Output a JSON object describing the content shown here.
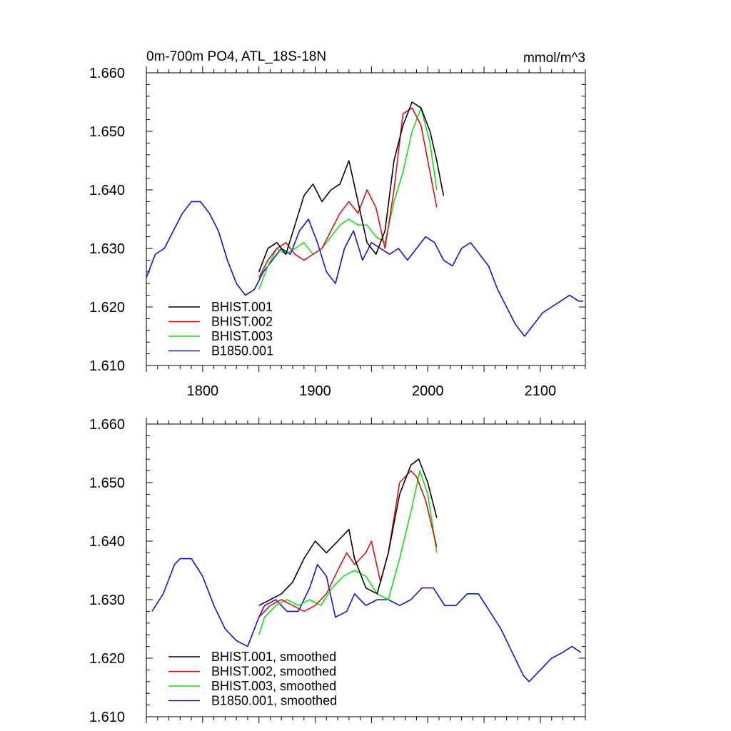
{
  "colors": {
    "BHIST.001": "#000000",
    "BHIST.002": "#e01010",
    "BHIST.003": "#10e010",
    "B1850.001": "#1010e0"
  },
  "chart_data": [
    {
      "type": "line",
      "title": "0m-700m PO4, ATL_18S-18N",
      "units": "mmol/m^3",
      "xlim": [
        1750,
        2140
      ],
      "ylim": [
        1.61,
        1.66
      ],
      "xticks": [
        "1800",
        "1900",
        "2000",
        "2100"
      ],
      "yticks": [
        "1.610",
        "1.620",
        "1.630",
        "1.640",
        "1.650",
        "1.660"
      ],
      "legend_position": "bottom-left",
      "series": [
        {
          "name": "BHIST.001",
          "x": [
            1850,
            1858,
            1866,
            1874,
            1882,
            1890,
            1898,
            1906,
            1914,
            1922,
            1930,
            1938,
            1946,
            1954,
            1962,
            1970,
            1978,
            1986,
            1994,
            2002,
            2008,
            2014
          ],
          "values": [
            1.626,
            1.63,
            1.631,
            1.629,
            1.634,
            1.639,
            1.641,
            1.638,
            1.64,
            1.641,
            1.645,
            1.638,
            1.631,
            1.629,
            1.633,
            1.645,
            1.651,
            1.655,
            1.654,
            1.65,
            1.645,
            1.639
          ]
        },
        {
          "name": "BHIST.002",
          "x": [
            1850,
            1858,
            1866,
            1874,
            1882,
            1890,
            1898,
            1906,
            1914,
            1922,
            1930,
            1938,
            1946,
            1954,
            1962,
            1970,
            1978,
            1986,
            1994,
            2002,
            2008
          ],
          "values": [
            1.625,
            1.628,
            1.63,
            1.631,
            1.629,
            1.628,
            1.629,
            1.63,
            1.633,
            1.636,
            1.638,
            1.636,
            1.64,
            1.637,
            1.63,
            1.64,
            1.653,
            1.654,
            1.651,
            1.643,
            1.637
          ]
        },
        {
          "name": "BHIST.003",
          "x": [
            1850,
            1858,
            1866,
            1874,
            1882,
            1890,
            1898,
            1906,
            1914,
            1922,
            1930,
            1938,
            1946,
            1954,
            1962,
            1970,
            1978,
            1986,
            1994,
            2002,
            2008
          ],
          "values": [
            1.623,
            1.627,
            1.63,
            1.629,
            1.63,
            1.631,
            1.629,
            1.63,
            1.632,
            1.634,
            1.635,
            1.634,
            1.634,
            1.632,
            1.631,
            1.638,
            1.643,
            1.65,
            1.654,
            1.648,
            1.64
          ]
        },
        {
          "name": "B1850.001",
          "x": [
            1750,
            1758,
            1766,
            1774,
            1782,
            1790,
            1798,
            1806,
            1814,
            1822,
            1830,
            1838,
            1846,
            1854,
            1862,
            1870,
            1878,
            1886,
            1894,
            1902,
            1910,
            1918,
            1926,
            1934,
            1942,
            1950,
            1958,
            1966,
            1974,
            1982,
            1990,
            1998,
            2006,
            2014,
            2022,
            2030,
            2038,
            2046,
            2054,
            2062,
            2070,
            2078,
            2086,
            2094,
            2102,
            2110,
            2118,
            2126,
            2134,
            2138
          ],
          "values": [
            1.625,
            1.629,
            1.63,
            1.633,
            1.636,
            1.638,
            1.638,
            1.636,
            1.633,
            1.628,
            1.624,
            1.622,
            1.623,
            1.626,
            1.628,
            1.63,
            1.629,
            1.633,
            1.635,
            1.631,
            1.626,
            1.624,
            1.63,
            1.633,
            1.628,
            1.631,
            1.63,
            1.629,
            1.63,
            1.628,
            1.63,
            1.632,
            1.631,
            1.628,
            1.627,
            1.63,
            1.631,
            1.629,
            1.627,
            1.623,
            1.62,
            1.617,
            1.615,
            1.617,
            1.619,
            1.62,
            1.621,
            1.622,
            1.621,
            1.621
          ]
        }
      ]
    },
    {
      "type": "line",
      "title": "",
      "xlim": [
        1750,
        2140
      ],
      "ylim": [
        1.61,
        1.66
      ],
      "xticks": [],
      "yticks": [
        "1.610",
        "1.620",
        "1.630",
        "1.640",
        "1.650",
        "1.660"
      ],
      "legend_position": "bottom-left",
      "series": [
        {
          "name": "BHIST.001, smoothed",
          "x": [
            1850,
            1860,
            1870,
            1880,
            1890,
            1900,
            1910,
            1920,
            1930,
            1935,
            1945,
            1955,
            1965,
            1975,
            1985,
            1992,
            2000,
            2008
          ],
          "values": [
            1.629,
            1.63,
            1.631,
            1.633,
            1.637,
            1.64,
            1.638,
            1.64,
            1.642,
            1.637,
            1.632,
            1.631,
            1.638,
            1.648,
            1.653,
            1.654,
            1.65,
            1.644
          ]
        },
        {
          "name": "BHIST.002, smoothed",
          "x": [
            1850,
            1860,
            1870,
            1880,
            1890,
            1900,
            1910,
            1920,
            1928,
            1935,
            1945,
            1950,
            1958,
            1965,
            1975,
            1985,
            1990,
            1998,
            2008
          ],
          "values": [
            1.627,
            1.629,
            1.63,
            1.629,
            1.628,
            1.629,
            1.631,
            1.635,
            1.638,
            1.636,
            1.638,
            1.64,
            1.633,
            1.638,
            1.65,
            1.652,
            1.651,
            1.647,
            1.639
          ]
        },
        {
          "name": "BHIST.003, smoothed",
          "x": [
            1850,
            1855,
            1865,
            1875,
            1885,
            1895,
            1905,
            1915,
            1925,
            1935,
            1945,
            1955,
            1965,
            1975,
            1985,
            1993,
            2000,
            2008
          ],
          "values": [
            1.624,
            1.627,
            1.629,
            1.63,
            1.629,
            1.63,
            1.629,
            1.632,
            1.634,
            1.635,
            1.634,
            1.631,
            1.63,
            1.637,
            1.645,
            1.652,
            1.648,
            1.638
          ]
        },
        {
          "name": "B1850.001, smoothed",
          "x": [
            1755,
            1765,
            1775,
            1780,
            1790,
            1800,
            1810,
            1820,
            1830,
            1840,
            1850,
            1855,
            1865,
            1875,
            1885,
            1895,
            1902,
            1910,
            1918,
            1928,
            1935,
            1945,
            1955,
            1965,
            1975,
            1985,
            1995,
            2005,
            2015,
            2025,
            2035,
            2045,
            2055,
            2065,
            2075,
            2085,
            2090,
            2100,
            2110,
            2120,
            2128,
            2136
          ],
          "values": [
            1.628,
            1.631,
            1.636,
            1.637,
            1.637,
            1.634,
            1.629,
            1.625,
            1.623,
            1.622,
            1.627,
            1.629,
            1.63,
            1.628,
            1.628,
            1.632,
            1.636,
            1.634,
            1.627,
            1.628,
            1.631,
            1.629,
            1.63,
            1.63,
            1.629,
            1.63,
            1.632,
            1.632,
            1.629,
            1.629,
            1.631,
            1.631,
            1.628,
            1.625,
            1.621,
            1.617,
            1.616,
            1.618,
            1.62,
            1.621,
            1.622,
            1.621
          ]
        }
      ]
    }
  ]
}
